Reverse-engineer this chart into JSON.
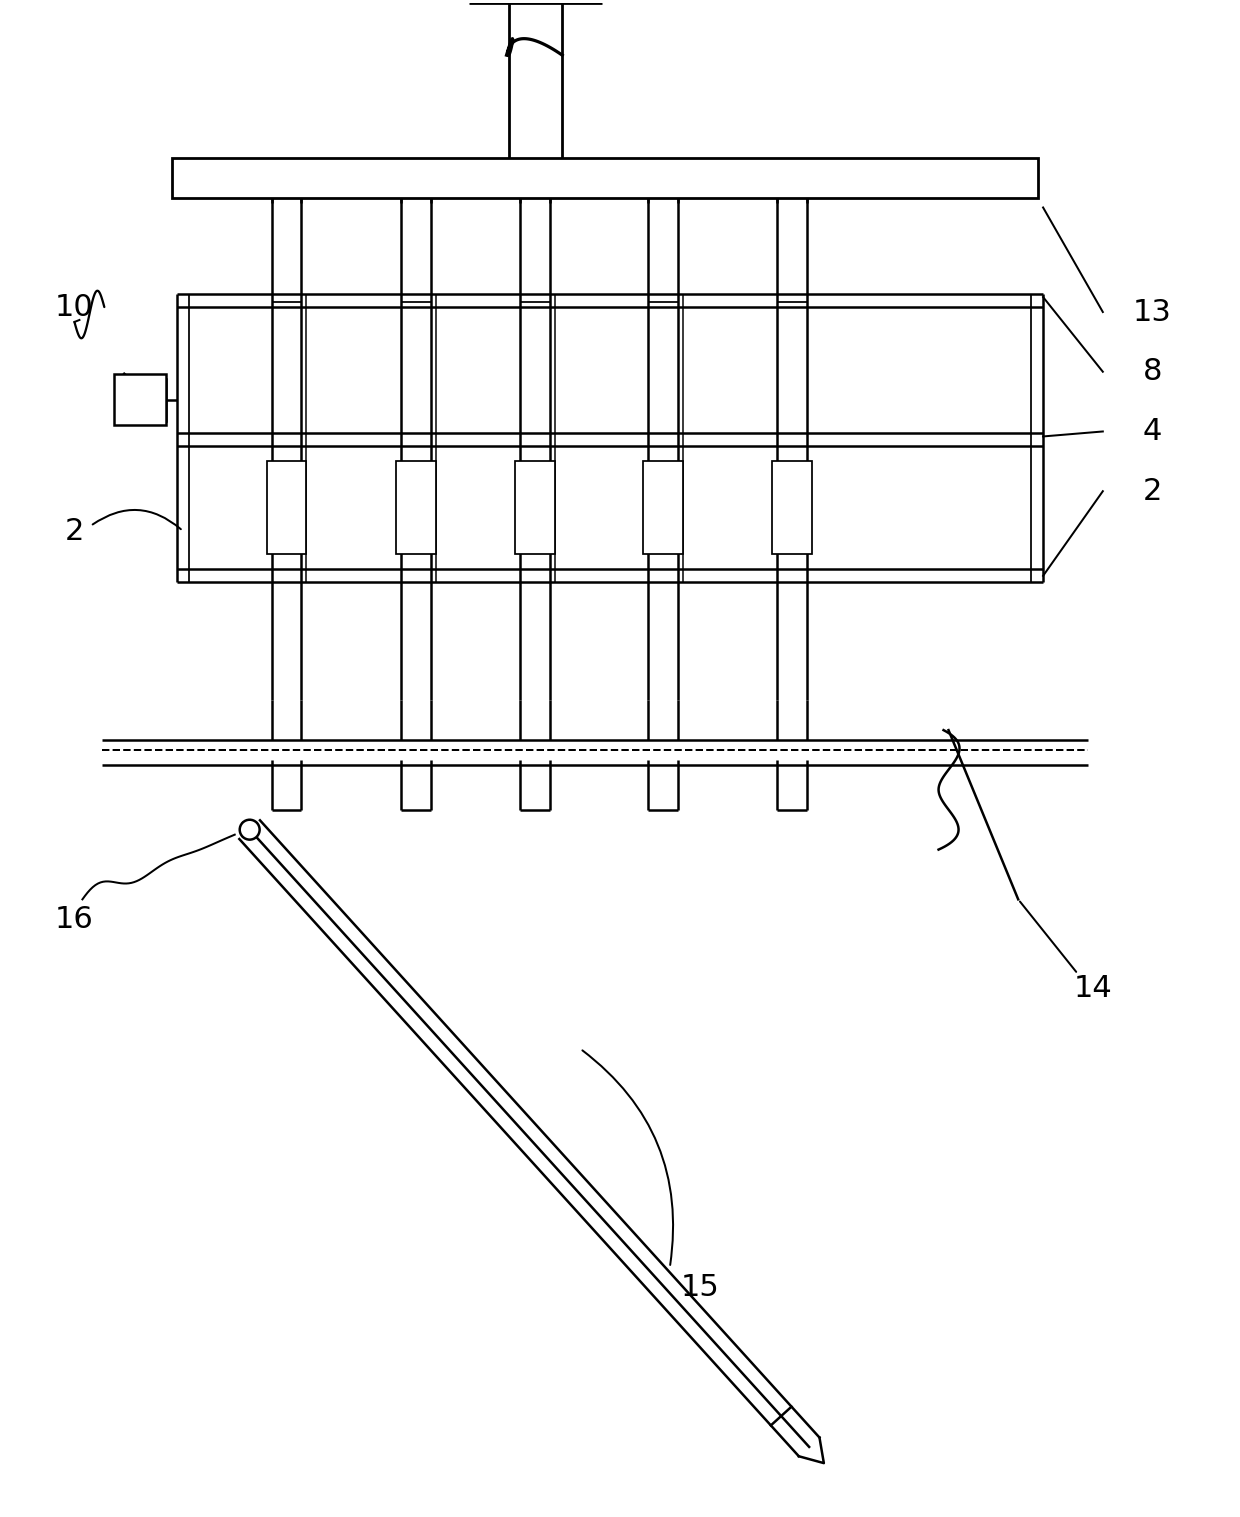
{
  "bg": "#ffffff",
  "lc": "#000000",
  "lw": 1.8,
  "fig_w": 12.4,
  "fig_h": 15.17,
  "label_fs": 22
}
